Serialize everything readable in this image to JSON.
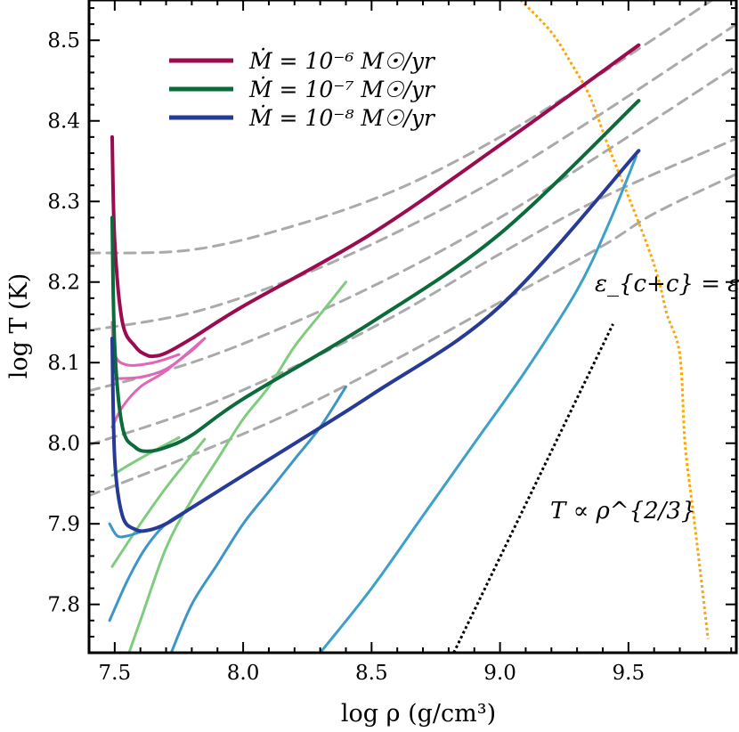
{
  "chart_data": {
    "type": "line",
    "xlabel": "log ρ (g/cm³)",
    "ylabel": "log T (K)",
    "xlim": [
      7.4,
      9.92
    ],
    "ylim": [
      7.74,
      8.55
    ],
    "xticks": [
      7.5,
      8.0,
      8.5,
      9.0,
      9.5
    ],
    "xtick_labels": [
      "7.5",
      "8.0",
      "8.5",
      "9.0",
      "9.5"
    ],
    "yticks": [
      7.8,
      7.9,
      8.0,
      8.1,
      8.2,
      8.3,
      8.4,
      8.5
    ],
    "ytick_labels": [
      "7.8",
      "7.9",
      "8.0",
      "8.1",
      "8.2",
      "8.3",
      "8.4",
      "8.5"
    ],
    "grid": false,
    "legend": {
      "placement": "top-left",
      "entries": [
        {
          "label": "Ṁ = 10⁻⁶ M☉/yr",
          "color": "#9B0B4F"
        },
        {
          "label": "Ṁ = 10⁻⁷ M☉/yr",
          "color": "#0C6B3A"
        },
        {
          "label": "Ṁ = 10⁻⁸ M☉/yr",
          "color": "#263A96"
        }
      ]
    },
    "annotations": [
      {
        "text": "ε_{c+c} = ε_ν",
        "x": 9.5,
        "y": 8.19
      },
      {
        "text": "T ∝ ρ^{2/3}",
        "x": 9.2,
        "y": 7.9
      }
    ],
    "series": [
      {
        "style": "dashed-gray",
        "color": "#AAAAAA",
        "points": [
          [
            7.4,
            8.236
          ],
          [
            7.8,
            8.24
          ],
          [
            8.2,
            8.27
          ],
          [
            8.6,
            8.315
          ],
          [
            9.0,
            8.38
          ],
          [
            9.4,
            8.46
          ],
          [
            9.92,
            8.57
          ]
        ]
      },
      {
        "style": "dashed-gray",
        "color": "#AAAAAA",
        "points": [
          [
            7.4,
            8.14
          ],
          [
            7.8,
            8.162
          ],
          [
            8.2,
            8.205
          ],
          [
            8.6,
            8.262
          ],
          [
            9.0,
            8.33
          ],
          [
            9.4,
            8.41
          ],
          [
            9.92,
            8.52
          ]
        ]
      },
      {
        "style": "dashed-gray",
        "color": "#AAAAAA",
        "points": [
          [
            7.4,
            8.065
          ],
          [
            7.8,
            8.1
          ],
          [
            8.2,
            8.15
          ],
          [
            8.6,
            8.21
          ],
          [
            9.0,
            8.28
          ],
          [
            9.4,
            8.36
          ],
          [
            9.92,
            8.468
          ]
        ]
      },
      {
        "style": "dashed-gray",
        "color": "#AAAAAA",
        "points": [
          [
            7.4,
            7.998
          ],
          [
            7.8,
            8.04
          ],
          [
            8.2,
            8.095
          ],
          [
            8.6,
            8.16
          ],
          [
            9.0,
            8.235
          ],
          [
            9.4,
            8.305
          ],
          [
            9.92,
            8.378
          ]
        ]
      },
      {
        "style": "dashed-gray",
        "color": "#AAAAAA",
        "points": [
          [
            7.4,
            7.935
          ],
          [
            7.8,
            7.985
          ],
          [
            8.2,
            8.04
          ],
          [
            8.6,
            8.105
          ],
          [
            9.0,
            8.175
          ],
          [
            9.4,
            8.245
          ],
          [
            9.6,
            8.285
          ],
          [
            9.92,
            8.334
          ]
        ]
      },
      {
        "style": "dotted",
        "color": "#FFA500",
        "points": [
          [
            9.08,
            8.55
          ],
          [
            9.2,
            8.51
          ],
          [
            9.28,
            8.47
          ],
          [
            9.35,
            8.43
          ],
          [
            9.42,
            8.37
          ],
          [
            9.52,
            8.29
          ],
          [
            9.58,
            8.24
          ],
          [
            9.62,
            8.2
          ],
          [
            9.65,
            8.16
          ],
          [
            9.7,
            8.11
          ],
          [
            9.72,
            8.0
          ],
          [
            9.75,
            7.92
          ],
          [
            9.78,
            7.84
          ],
          [
            9.81,
            7.757
          ]
        ]
      },
      {
        "style": "dotted",
        "color": "#000000",
        "points": [
          [
            8.82,
            7.74
          ],
          [
            9.44,
            8.148
          ]
        ]
      },
      {
        "style": "solid",
        "color": "#E066B8",
        "points": [
          [
            7.49,
            8.02
          ],
          [
            7.53,
            8.045
          ],
          [
            7.6,
            8.07
          ],
          [
            7.7,
            8.09
          ],
          [
            7.85,
            8.13
          ]
        ]
      },
      {
        "style": "solid",
        "color": "#E066B8",
        "points": [
          [
            7.49,
            8.08
          ],
          [
            7.6,
            8.082
          ],
          [
            7.7,
            8.092
          ],
          [
            7.8,
            8.115
          ],
          [
            7.85,
            8.13
          ]
        ]
      },
      {
        "style": "solid",
        "color": "#E066B8",
        "points": [
          [
            7.49,
            8.15
          ],
          [
            7.5,
            8.11
          ],
          [
            7.55,
            8.097
          ],
          [
            7.65,
            8.1
          ],
          [
            7.75,
            8.11
          ]
        ]
      },
      {
        "style": "solid",
        "color": "#7FCC7F",
        "points": [
          [
            7.5,
            7.69
          ],
          [
            7.6,
            7.78
          ],
          [
            7.7,
            7.87
          ],
          [
            7.8,
            7.93
          ],
          [
            7.9,
            7.98
          ],
          [
            8.0,
            8.03
          ],
          [
            8.1,
            8.07
          ],
          [
            8.2,
            8.12
          ],
          [
            8.3,
            8.16
          ],
          [
            8.4,
            8.2
          ]
        ]
      },
      {
        "style": "solid",
        "color": "#7FCC7F",
        "points": [
          [
            7.49,
            7.847
          ],
          [
            7.6,
            7.9
          ],
          [
            7.7,
            7.945
          ],
          [
            7.8,
            7.985
          ],
          [
            7.85,
            8.005
          ]
        ]
      },
      {
        "style": "solid",
        "color": "#7FCC7F",
        "points": [
          [
            7.49,
            7.96
          ],
          [
            7.55,
            7.972
          ],
          [
            7.65,
            7.99
          ],
          [
            7.75,
            8.007
          ]
        ]
      },
      {
        "style": "solid",
        "color": "#3C96C8",
        "points": [
          [
            7.72,
            7.74
          ],
          [
            7.8,
            7.8
          ],
          [
            7.9,
            7.85
          ],
          [
            8.0,
            7.9
          ],
          [
            8.1,
            7.94
          ],
          [
            8.2,
            7.98
          ],
          [
            8.3,
            8.02
          ],
          [
            8.4,
            8.07
          ]
        ]
      },
      {
        "style": "solid",
        "color": "#3C96C8",
        "points": [
          [
            7.48,
            7.78
          ],
          [
            7.55,
            7.83
          ],
          [
            7.62,
            7.87
          ],
          [
            7.7,
            7.9
          ],
          [
            7.8,
            7.92
          ]
        ]
      },
      {
        "style": "solid",
        "color": "#3C96C8",
        "points": [
          [
            7.48,
            7.9
          ],
          [
            7.51,
            7.885
          ],
          [
            7.55,
            7.885
          ],
          [
            7.6,
            7.89
          ]
        ]
      },
      {
        "style": "solid",
        "color": "#3CA0C8",
        "points": [
          [
            8.3,
            7.74
          ],
          [
            8.5,
            7.82
          ],
          [
            8.7,
            7.91
          ],
          [
            8.9,
            8.0
          ],
          [
            9.1,
            8.09
          ],
          [
            9.3,
            8.19
          ],
          [
            9.42,
            8.27
          ],
          [
            9.53,
            8.356
          ]
        ]
      },
      {
        "style": "solid-thick",
        "color": "#9B0B4F",
        "name": "Ṁ = 10⁻⁶ M☉/yr",
        "points": [
          [
            7.49,
            8.38
          ],
          [
            7.5,
            8.25
          ],
          [
            7.53,
            8.15
          ],
          [
            7.58,
            8.12
          ],
          [
            7.62,
            8.11
          ],
          [
            7.65,
            8.108
          ],
          [
            7.7,
            8.112
          ],
          [
            7.8,
            8.13
          ],
          [
            8.0,
            8.17
          ],
          [
            8.5,
            8.26
          ],
          [
            9.0,
            8.37
          ],
          [
            9.54,
            8.494
          ]
        ]
      },
      {
        "style": "solid-thick",
        "color": "#0C6B3A",
        "name": "Ṁ = 10⁻⁷ M☉/yr",
        "points": [
          [
            7.49,
            8.28
          ],
          [
            7.5,
            8.12
          ],
          [
            7.53,
            8.02
          ],
          [
            7.58,
            7.995
          ],
          [
            7.63,
            7.99
          ],
          [
            7.7,
            7.995
          ],
          [
            7.8,
            8.01
          ],
          [
            8.0,
            8.055
          ],
          [
            8.5,
            8.15
          ],
          [
            9.0,
            8.26
          ],
          [
            9.54,
            8.425
          ]
        ]
      },
      {
        "style": "solid-thick",
        "color": "#263A96",
        "name": "Ṁ = 10⁻⁸ M☉/yr",
        "points": [
          [
            7.49,
            8.13
          ],
          [
            7.5,
            7.98
          ],
          [
            7.53,
            7.91
          ],
          [
            7.58,
            7.893
          ],
          [
            7.63,
            7.892
          ],
          [
            7.7,
            7.9
          ],
          [
            7.8,
            7.92
          ],
          [
            8.0,
            7.96
          ],
          [
            8.5,
            8.06
          ],
          [
            9.0,
            8.17
          ],
          [
            9.54,
            8.363
          ]
        ]
      }
    ]
  }
}
